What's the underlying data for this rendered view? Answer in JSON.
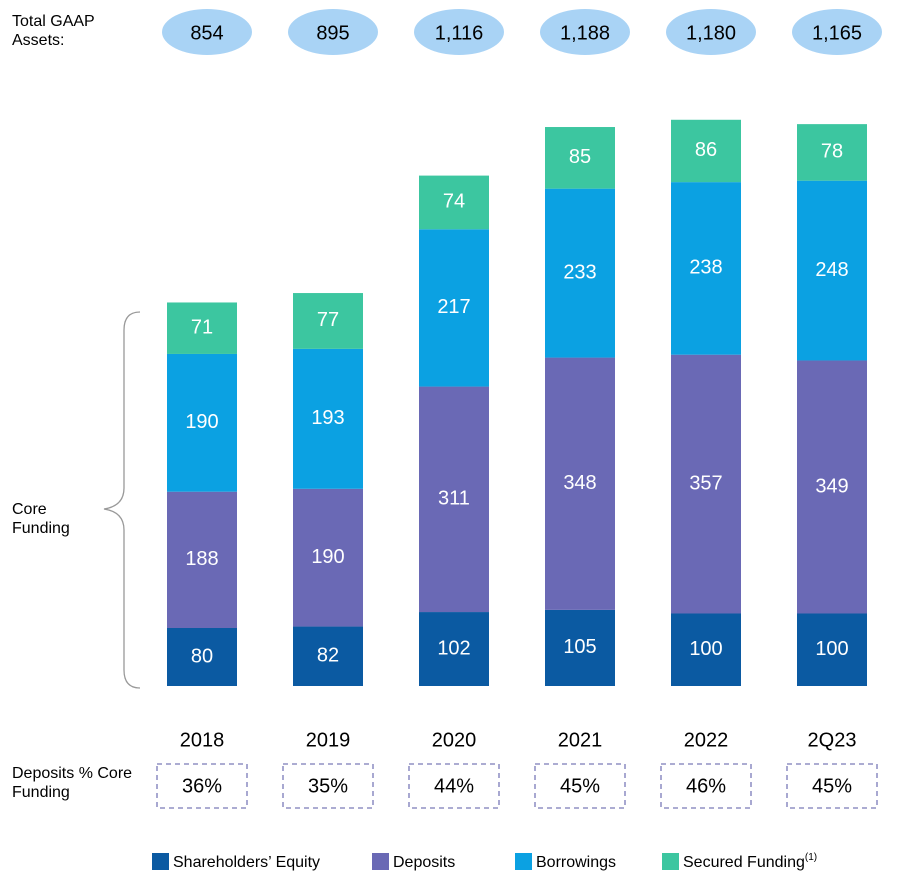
{
  "chart_data": {
    "type": "stacked_bar",
    "categories": [
      "2018",
      "2019",
      "2020",
      "2021",
      "2022",
      "2Q23"
    ],
    "series": [
      {
        "name": "Shareholders’ Equity",
        "color": "#0b5aa2",
        "values": [
          80,
          82,
          102,
          105,
          100,
          100
        ]
      },
      {
        "name": "Deposits",
        "color": "#6a69b5",
        "values": [
          188,
          190,
          311,
          348,
          357,
          349
        ]
      },
      {
        "name": "Borrowings",
        "color": "#0ba1e2",
        "values": [
          190,
          193,
          217,
          233,
          238,
          248
        ]
      },
      {
        "name": "Secured Funding",
        "footnote": "(1)",
        "color": "#3cc6a0",
        "values": [
          71,
          77,
          74,
          85,
          86,
          78
        ]
      }
    ],
    "total_assets": {
      "label": "Total GAAP Assets:",
      "values": [
        854,
        895,
        1116,
        1188,
        1180,
        1165
      ],
      "value_labels": [
        "854",
        "895",
        "1,116",
        "1,188",
        "1,180",
        "1,165"
      ],
      "color": "#a9d3f5"
    },
    "core_funding_label": "Core Funding",
    "deposits_pct": {
      "label": "Deposits % Core Funding",
      "values": [
        36,
        35,
        44,
        45,
        46,
        45
      ],
      "value_labels": [
        "36%",
        "35%",
        "44%",
        "45%",
        "46%",
        "45%"
      ]
    },
    "legend": "bottom"
  }
}
